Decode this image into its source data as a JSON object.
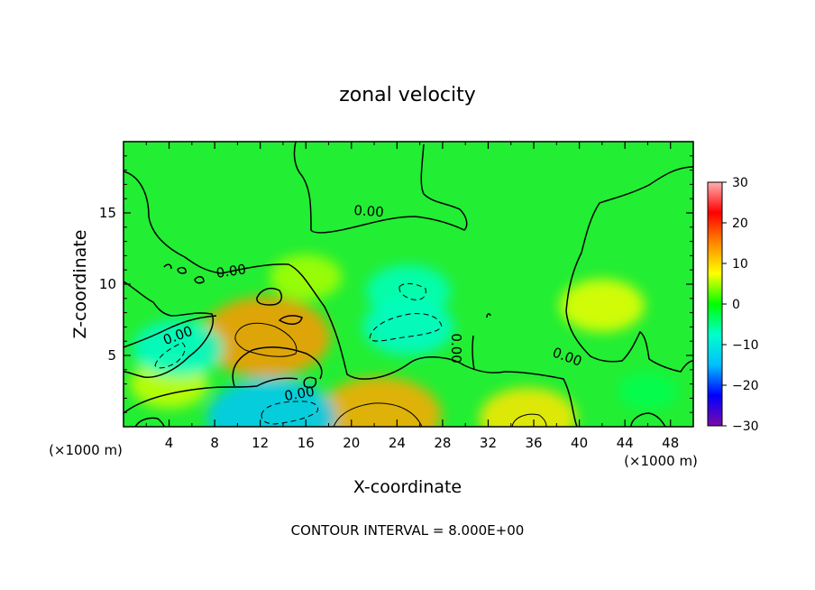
{
  "chart_data": {
    "type": "heatmap",
    "title": "zonal velocity",
    "xlabel": "X-coordinate",
    "ylabel": "Z-coordinate",
    "x_unit_left": "(×1000 m)",
    "x_unit_right": "(×1000 m)",
    "xlim": [
      0,
      50
    ],
    "ylim": [
      0,
      20
    ],
    "x_ticks": [
      "4",
      "8",
      "12",
      "16",
      "20",
      "24",
      "28",
      "32",
      "36",
      "40",
      "44",
      "48"
    ],
    "y_ticks": [
      "5",
      "10",
      "15"
    ],
    "colorbar": {
      "range": [
        -30,
        30
      ],
      "ticks": [
        "30",
        "20",
        "10",
        "0",
        "−10",
        "−20",
        "−30"
      ],
      "colors": [
        "#7a0aa8",
        "#0000ff",
        "#00bfff",
        "#00ffcc",
        "#00ff00",
        "#ffff00",
        "#ff8800",
        "#ff0000",
        "#ffb0b0"
      ]
    },
    "contour_label": "0.00",
    "contour_interval_text": "CONTOUR INTERVAL = 8.000E+00",
    "features": [
      {
        "x": 12.5,
        "y": 6.3,
        "value": 14
      },
      {
        "x": 22.5,
        "y": 0.8,
        "value": 13
      },
      {
        "x": 35.5,
        "y": 0.6,
        "value": 9
      },
      {
        "x": 42.0,
        "y": 8.5,
        "value": 7
      },
      {
        "x": 16.0,
        "y": 10.5,
        "value": 5
      },
      {
        "x": 4.0,
        "y": 3.0,
        "value": 6
      },
      {
        "x": 13.0,
        "y": 0.6,
        "value": -14
      },
      {
        "x": 4.8,
        "y": 5.5,
        "value": -8
      },
      {
        "x": 25.0,
        "y": 7.0,
        "value": -8
      },
      {
        "x": 25.0,
        "y": 9.5,
        "value": -7
      },
      {
        "x": 46.0,
        "y": 2.5,
        "value": -3
      }
    ]
  }
}
